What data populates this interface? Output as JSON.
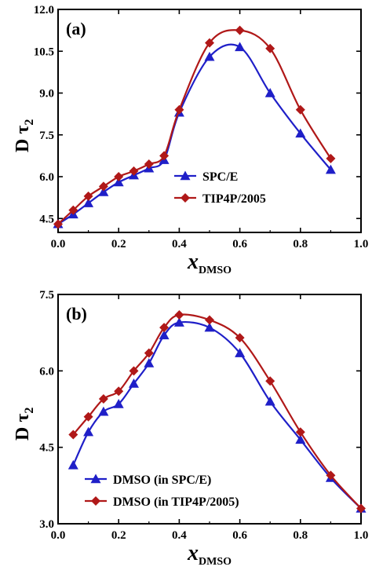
{
  "chart_data": [
    {
      "type": "line",
      "panel_label": "(a)",
      "xlabel": "x",
      "xlabel_sub": "DMSO",
      "ylabel": "D τ",
      "ylabel_sub": "2",
      "xlim": [
        0.0,
        1.0
      ],
      "ylim": [
        4.0,
        12.0
      ],
      "xticks": [
        0.0,
        0.2,
        0.4,
        0.6,
        0.8,
        1.0
      ],
      "xtick_labels": [
        "0.0",
        "0.2",
        "0.4",
        "0.6",
        "0.8",
        "1.0"
      ],
      "yticks": [
        4.5,
        6.0,
        7.5,
        9.0,
        10.5,
        12.0
      ],
      "ytick_labels": [
        "4.5",
        "6.0",
        "7.5",
        "9.0",
        "10.5",
        "12.0"
      ],
      "legend_position": "lower-center",
      "series": [
        {
          "name": "SPC/E",
          "color": "#1f1fc8",
          "marker": "triangle",
          "x": [
            0.0,
            0.05,
            0.1,
            0.15,
            0.2,
            0.25,
            0.3,
            0.35,
            0.4,
            0.5,
            0.6,
            0.7,
            0.8,
            0.9
          ],
          "y": [
            4.3,
            4.65,
            5.05,
            5.45,
            5.8,
            6.05,
            6.3,
            6.6,
            8.3,
            10.3,
            10.65,
            9.0,
            7.55,
            6.25
          ]
        },
        {
          "name": "TIP4P/2005",
          "color": "#b01818",
          "marker": "diamond",
          "x": [
            0.0,
            0.05,
            0.1,
            0.15,
            0.2,
            0.25,
            0.3,
            0.35,
            0.4,
            0.5,
            0.6,
            0.7,
            0.8,
            0.9
          ],
          "y": [
            4.3,
            4.8,
            5.3,
            5.65,
            6.0,
            6.2,
            6.45,
            6.75,
            8.4,
            10.8,
            11.25,
            10.6,
            8.4,
            6.65
          ]
        }
      ]
    },
    {
      "type": "line",
      "panel_label": "(b)",
      "xlabel": "x",
      "xlabel_sub": "DMSO",
      "ylabel": "D τ",
      "ylabel_sub": "2",
      "xlim": [
        0.0,
        1.0
      ],
      "ylim": [
        3.0,
        7.5
      ],
      "xticks": [
        0.0,
        0.2,
        0.4,
        0.6,
        0.8,
        1.0
      ],
      "xtick_labels": [
        "0.0",
        "0.2",
        "0.4",
        "0.6",
        "0.8",
        "1.0"
      ],
      "yticks": [
        3.0,
        4.5,
        6.0,
        7.5
      ],
      "ytick_labels": [
        "3.0",
        "4.5",
        "6.0",
        "7.5"
      ],
      "legend_position": "lower-left",
      "series": [
        {
          "name": "DMSO (in SPC/E)",
          "color": "#1f1fc8",
          "marker": "triangle",
          "x": [
            0.05,
            0.1,
            0.15,
            0.2,
            0.25,
            0.3,
            0.35,
            0.4,
            0.5,
            0.6,
            0.7,
            0.8,
            0.9,
            1.0
          ],
          "y": [
            4.15,
            4.8,
            5.2,
            5.35,
            5.75,
            6.15,
            6.7,
            6.95,
            6.85,
            6.35,
            5.4,
            4.65,
            3.9,
            3.3
          ]
        },
        {
          "name": "DMSO (in TIP4P/2005)",
          "color": "#b01818",
          "marker": "diamond",
          "x": [
            0.05,
            0.1,
            0.15,
            0.2,
            0.25,
            0.3,
            0.35,
            0.4,
            0.5,
            0.6,
            0.7,
            0.8,
            0.9,
            1.0
          ],
          "y": [
            4.75,
            5.1,
            5.45,
            5.6,
            6.0,
            6.35,
            6.85,
            7.1,
            7.0,
            6.65,
            5.8,
            4.8,
            3.95,
            3.3
          ]
        }
      ]
    }
  ]
}
